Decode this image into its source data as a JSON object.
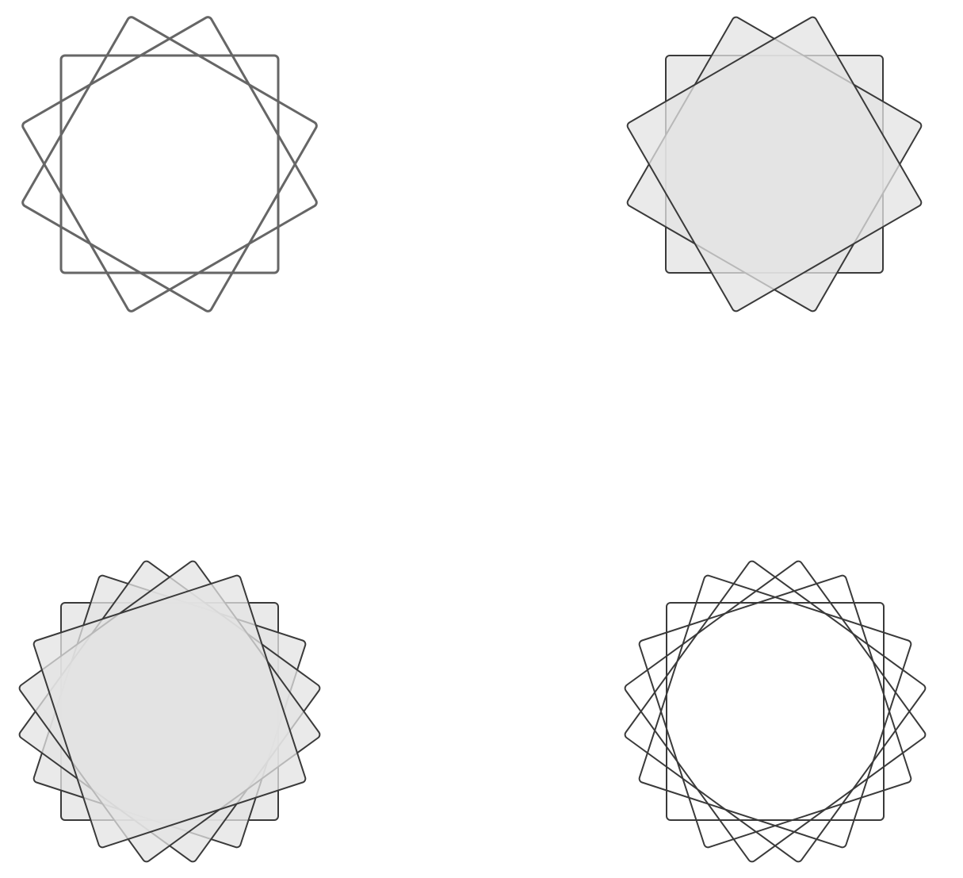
{
  "figures": [
    {
      "id": "top-left",
      "square_count": 3,
      "rotation_step_deg": 30,
      "filled": false,
      "stroke_color": "#666666",
      "fill_color": "none"
    },
    {
      "id": "top-right",
      "square_count": 3,
      "rotation_step_deg": 30,
      "filled": true,
      "stroke_color": "#3a3a3a",
      "fill_color": "#e3e3e3"
    },
    {
      "id": "bottom-left",
      "square_count": 5,
      "rotation_step_deg": 18,
      "filled": true,
      "stroke_color": "#3a3a3a",
      "fill_color": "#e3e3e3"
    },
    {
      "id": "bottom-right",
      "square_count": 5,
      "rotation_step_deg": 18,
      "filled": false,
      "stroke_color": "#3a3a3a",
      "fill_color": "none"
    }
  ]
}
